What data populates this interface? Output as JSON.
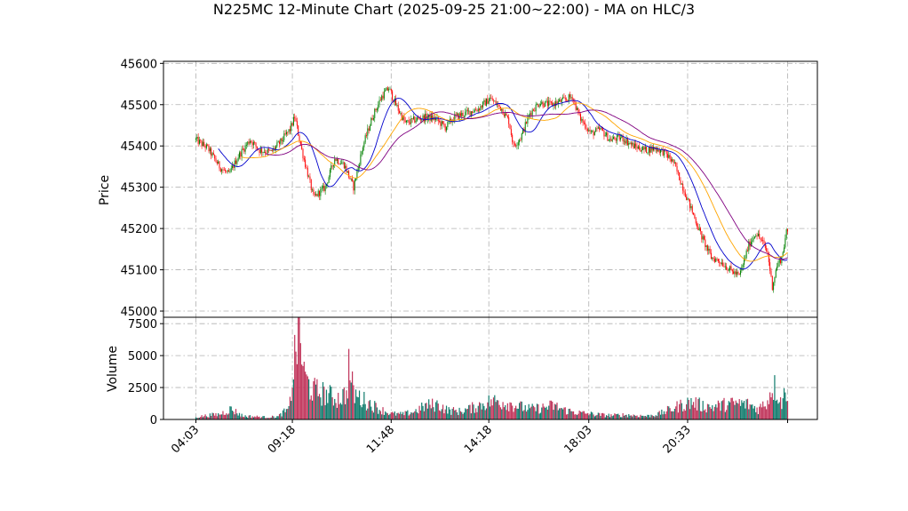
{
  "chart_data": {
    "type": "candlestick",
    "title": "N225MC 12-Minute Chart (2025-09-25 21:00~22:00) - MA on HLC/3",
    "price_panel": {
      "ylabel": "Price",
      "ylim": [
        44985,
        45605
      ],
      "yticks": [
        45000,
        45100,
        45200,
        45300,
        45400,
        45500,
        45600
      ]
    },
    "volume_panel": {
      "ylabel": "Volume",
      "ylim": [
        0,
        8000
      ],
      "yticks": [
        0,
        2500,
        5000,
        7500
      ]
    },
    "x_tick_labels": [
      "04:03",
      "09:18",
      "11:48",
      "14:18",
      "18:03",
      "20:33"
    ],
    "colors": {
      "up": "#008000",
      "down": "#ff0000",
      "vol_up": "#0f7b6c",
      "vol_down": "#c0345a",
      "ma_fast": "#0000cc",
      "ma_mid": "#ffa500",
      "ma_slow": "#800080"
    },
    "price_path": [
      [
        0,
        45415
      ],
      [
        10,
        45395
      ],
      [
        20,
        45350
      ],
      [
        28,
        45330
      ],
      [
        36,
        45375
      ],
      [
        46,
        45415
      ],
      [
        54,
        45390
      ],
      [
        64,
        45385
      ],
      [
        72,
        45410
      ],
      [
        80,
        45440
      ],
      [
        84,
        45470
      ],
      [
        90,
        45390
      ],
      [
        100,
        45275
      ],
      [
        110,
        45300
      ],
      [
        118,
        45370
      ],
      [
        126,
        45355
      ],
      [
        134,
        45300
      ],
      [
        142,
        45400
      ],
      [
        150,
        45470
      ],
      [
        158,
        45520
      ],
      [
        164,
        45540
      ],
      [
        170,
        45500
      ],
      [
        178,
        45455
      ],
      [
        188,
        45465
      ],
      [
        196,
        45470
      ],
      [
        204,
        45465
      ],
      [
        212,
        45445
      ],
      [
        220,
        45470
      ],
      [
        230,
        45480
      ],
      [
        240,
        45490
      ],
      [
        250,
        45515
      ],
      [
        260,
        45490
      ],
      [
        266,
        45460
      ],
      [
        270,
        45400
      ],
      [
        276,
        45420
      ],
      [
        284,
        45480
      ],
      [
        292,
        45505
      ],
      [
        302,
        45500
      ],
      [
        312,
        45510
      ],
      [
        320,
        45520
      ],
      [
        326,
        45470
      ],
      [
        336,
        45430
      ],
      [
        344,
        45440
      ],
      [
        352,
        45415
      ],
      [
        362,
        45420
      ],
      [
        372,
        45400
      ],
      [
        382,
        45390
      ],
      [
        390,
        45395
      ],
      [
        398,
        45385
      ],
      [
        406,
        45360
      ],
      [
        414,
        45300
      ],
      [
        422,
        45240
      ],
      [
        430,
        45180
      ],
      [
        438,
        45130
      ],
      [
        446,
        45120
      ],
      [
        454,
        45100
      ],
      [
        462,
        45085
      ],
      [
        470,
        45160
      ],
      [
        476,
        45190
      ],
      [
        482,
        45165
      ],
      [
        486,
        45140
      ],
      [
        490,
        45060
      ],
      [
        494,
        45110
      ],
      [
        498,
        45130
      ],
      [
        502,
        45190
      ]
    ],
    "volume_profile": [
      [
        0,
        200
      ],
      [
        10,
        350
      ],
      [
        20,
        450
      ],
      [
        30,
        900
      ],
      [
        40,
        300
      ],
      [
        60,
        200
      ],
      [
        70,
        250
      ],
      [
        74,
        600
      ],
      [
        79,
        800
      ],
      [
        82,
        3500
      ],
      [
        86,
        7200
      ],
      [
        88,
        7900
      ],
      [
        92,
        3800
      ],
      [
        96,
        3000
      ],
      [
        100,
        2500
      ],
      [
        110,
        2200
      ],
      [
        120,
        1800
      ],
      [
        128,
        2200
      ],
      [
        130,
        4500
      ],
      [
        134,
        2300
      ],
      [
        140,
        1800
      ],
      [
        146,
        1500
      ],
      [
        156,
        900
      ],
      [
        166,
        500
      ],
      [
        176,
        450
      ],
      [
        186,
        700
      ],
      [
        196,
        1200
      ],
      [
        206,
        1300
      ],
      [
        214,
        800
      ],
      [
        224,
        700
      ],
      [
        232,
        900
      ],
      [
        240,
        1200
      ],
      [
        248,
        1500
      ],
      [
        256,
        1600
      ],
      [
        266,
        1400
      ],
      [
        276,
        1100
      ],
      [
        284,
        900
      ],
      [
        294,
        1000
      ],
      [
        304,
        1200
      ],
      [
        314,
        800
      ],
      [
        324,
        600
      ],
      [
        334,
        500
      ],
      [
        344,
        400
      ],
      [
        354,
        350
      ],
      [
        364,
        400
      ],
      [
        374,
        350
      ],
      [
        384,
        300
      ],
      [
        394,
        500
      ],
      [
        404,
        900
      ],
      [
        414,
        1300
      ],
      [
        422,
        1500
      ],
      [
        430,
        1200
      ],
      [
        440,
        1100
      ],
      [
        450,
        1300
      ],
      [
        460,
        1400
      ],
      [
        470,
        1300
      ],
      [
        478,
        900
      ],
      [
        486,
        1600
      ],
      [
        490,
        3000
      ],
      [
        494,
        2500
      ],
      [
        498,
        1500
      ],
      [
        502,
        2600
      ]
    ]
  }
}
